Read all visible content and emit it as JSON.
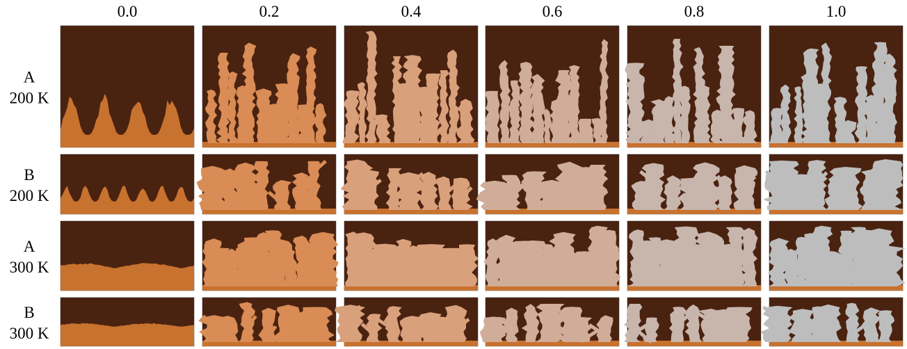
{
  "columns": [
    "0.0",
    "0.2",
    "0.4",
    "0.6",
    "0.8",
    "1.0"
  ],
  "rows": [
    {
      "label": "A",
      "temp": "200 K"
    },
    {
      "label": "B",
      "temp": "200 K"
    },
    {
      "label": "A",
      "temp": "300 K"
    },
    {
      "label": "B",
      "temp": "300 K"
    }
  ]
}
